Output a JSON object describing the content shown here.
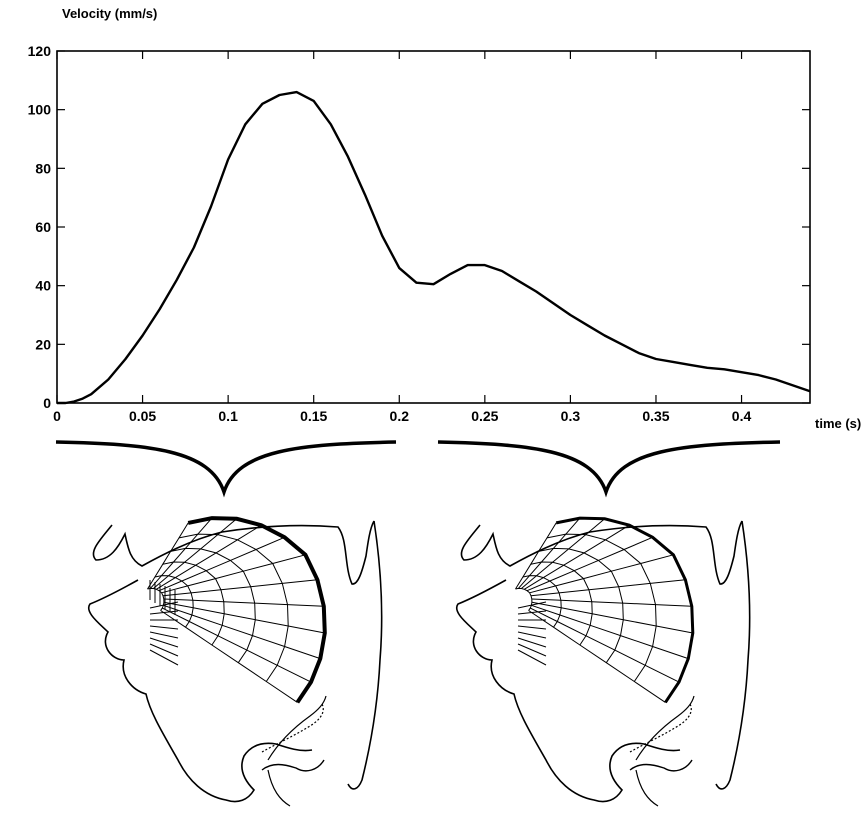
{
  "chart_data": {
    "type": "line",
    "title": "",
    "ylabel": "Velocity (mm/s)",
    "xlabel": "time (s)",
    "xlim": [
      0,
      0.44
    ],
    "ylim": [
      0,
      120
    ],
    "xticks": [
      0,
      0.05,
      0.1,
      0.15,
      0.2,
      0.25,
      0.3,
      0.35,
      0.4
    ],
    "xtick_labels": [
      "0",
      "0.05",
      "0.1",
      "0.15",
      "0.2",
      "0.25",
      "0.3",
      "0.35",
      "0.4"
    ],
    "yticks": [
      0,
      20,
      40,
      60,
      80,
      100,
      120
    ],
    "ytick_labels": [
      "0",
      "20",
      "40",
      "60",
      "80",
      "100",
      "120"
    ],
    "grid": false,
    "legend": "none",
    "series": [
      {
        "x": [
          0.0,
          0.005,
          0.01,
          0.015,
          0.02,
          0.03,
          0.04,
          0.05,
          0.06,
          0.07,
          0.08,
          0.09,
          0.1,
          0.11,
          0.12,
          0.13,
          0.14,
          0.15,
          0.16,
          0.17,
          0.18,
          0.19,
          0.2,
          0.21,
          0.22,
          0.23,
          0.24,
          0.25,
          0.26,
          0.27,
          0.28,
          0.29,
          0.3,
          0.31,
          0.32,
          0.33,
          0.34,
          0.35,
          0.36,
          0.37,
          0.38,
          0.39,
          0.4,
          0.41,
          0.42,
          0.43,
          0.44
        ],
        "y": [
          0,
          0,
          0.5,
          1.5,
          3,
          8,
          15,
          23,
          32,
          42,
          53,
          67,
          83,
          95,
          102,
          105,
          106,
          103,
          95,
          84,
          71,
          57,
          46,
          41,
          40.5,
          44,
          47,
          47,
          45,
          41.5,
          38,
          34,
          30,
          26.5,
          23,
          20,
          17,
          15,
          14,
          13,
          12,
          11.5,
          10.5,
          9.5,
          8,
          6,
          4
        ]
      }
    ],
    "annotations": []
  },
  "illustration": {
    "brackets": 2,
    "panels": [
      "tongue-mesh-early",
      "tongue-mesh-late"
    ]
  }
}
